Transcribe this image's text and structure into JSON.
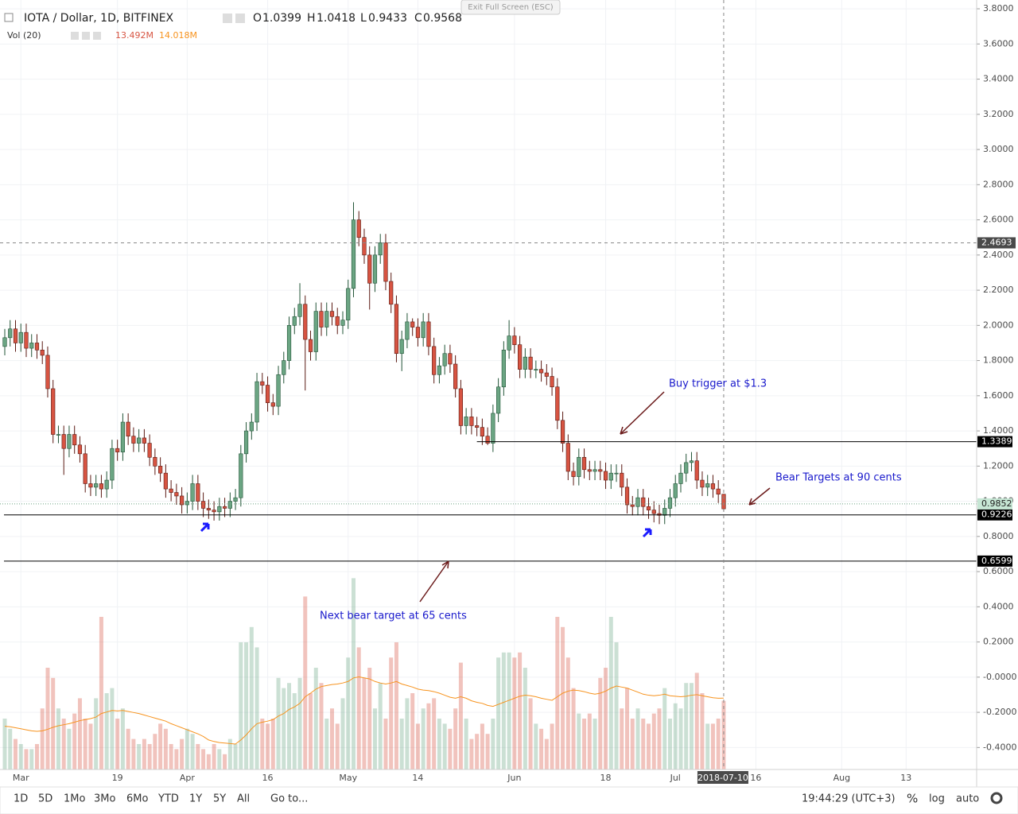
{
  "header": {
    "symbol": "IOTA / Dollar, 1D, BITFINEX",
    "o": "O",
    "h": "H",
    "l": "L",
    "c": "C",
    "vol_title": "Vol (20)",
    "volume": "13.492M",
    "volume_ma": "14.018M",
    "exit": "Exit Full Screen (ESC)"
  },
  "toolbar": {
    "ranges": [
      "1D",
      "5D",
      "1Mo",
      "3Mo",
      "6Mo",
      "YTD",
      "1Y",
      "5Y",
      "All"
    ],
    "goto": "Go to...",
    "clock": "19:44:29 (UTC+3)",
    "percent": "%",
    "log": "log",
    "auto": "auto"
  },
  "annotations": [
    "Buy trigger at $1.3",
    "Bear Targets at 90 cents",
    "Next bear target at 65 cents"
  ],
  "chart_data": {
    "type": "candlestick",
    "log_scale": false,
    "grid": true,
    "up_color": "#6ba583",
    "down_color": "#d75442",
    "ma_color": "#f7931e",
    "xlim": [
      "2018-02-26",
      "2018-08-26"
    ],
    "ylim": [
      -0.525,
      3.85
    ],
    "volume_ylim": [
      0,
      40
    ],
    "yticks": [
      {
        "value": 3.8,
        "label": "3.8000"
      },
      {
        "value": 3.6,
        "label": "3.6000"
      },
      {
        "value": 3.4,
        "label": "3.4000"
      },
      {
        "value": 3.2,
        "label": "3.2000"
      },
      {
        "value": 3.0,
        "label": "3.0000"
      },
      {
        "value": 2.8,
        "label": "2.8000"
      },
      {
        "value": 2.6,
        "label": "2.6000"
      },
      {
        "value": 2.4,
        "label": "2.4000"
      },
      {
        "value": 2.2,
        "label": "2.2000"
      },
      {
        "value": 2.0,
        "label": "2.0000"
      },
      {
        "value": 1.8,
        "label": "1.8000"
      },
      {
        "value": 1.6,
        "label": "1.6000"
      },
      {
        "value": 1.4,
        "label": "1.4000"
      },
      {
        "value": 1.2,
        "label": "1.2000"
      },
      {
        "value": 1.0,
        "label": "1.0000"
      },
      {
        "value": 0.8,
        "label": "0.8000"
      },
      {
        "value": 0.6,
        "label": "0.6000"
      },
      {
        "value": 0.4,
        "label": "0.4000"
      },
      {
        "value": 0.2,
        "label": "0.2000"
      },
      {
        "value": 0,
        "label": "-0.0000"
      },
      {
        "value": -0.2,
        "label": "-0.2000"
      },
      {
        "value": -0.4,
        "label": "-0.4000"
      }
    ],
    "xticks": [
      {
        "value": "2018-03-01",
        "label": "Mar"
      },
      {
        "value": "2018-03-19",
        "label": "19"
      },
      {
        "value": "2018-04-01",
        "label": "Apr"
      },
      {
        "value": "2018-04-16",
        "label": "16"
      },
      {
        "value": "2018-05-01",
        "label": "May"
      },
      {
        "value": "2018-05-14",
        "label": "14"
      },
      {
        "value": "2018-06-01",
        "label": "Jun"
      },
      {
        "value": "2018-06-18",
        "label": "18"
      },
      {
        "value": "2018-07-01",
        "label": "Jul"
      },
      {
        "value": "2018-07-16",
        "label": "16"
      },
      {
        "value": "2018-08-01",
        "label": "Aug"
      },
      {
        "value": "2018-08-13",
        "label": "13"
      }
    ],
    "price_lines": [
      {
        "value": 1.3389,
        "from": "2018-05-25"
      },
      {
        "value": 0.9226
      },
      {
        "value": 0.6599
      }
    ],
    "last_price": 0.9852,
    "crosshair": {
      "price": 2.4693,
      "date": "2018-07-10"
    },
    "x": [
      "2018-02-26",
      "2018-02-27",
      "2018-02-28",
      "2018-03-01",
      "2018-03-02",
      "2018-03-03",
      "2018-03-04",
      "2018-03-05",
      "2018-03-06",
      "2018-03-07",
      "2018-03-08",
      "2018-03-09",
      "2018-03-10",
      "2018-03-11",
      "2018-03-12",
      "2018-03-13",
      "2018-03-14",
      "2018-03-15",
      "2018-03-16",
      "2018-03-17",
      "2018-03-18",
      "2018-03-19",
      "2018-03-20",
      "2018-03-21",
      "2018-03-22",
      "2018-03-23",
      "2018-03-24",
      "2018-03-25",
      "2018-03-26",
      "2018-03-27",
      "2018-03-28",
      "2018-03-29",
      "2018-03-30",
      "2018-03-31",
      "2018-04-01",
      "2018-04-02",
      "2018-04-03",
      "2018-04-04",
      "2018-04-05",
      "2018-04-06",
      "2018-04-07",
      "2018-04-08",
      "2018-04-09",
      "2018-04-10",
      "2018-04-11",
      "2018-04-12",
      "2018-04-13",
      "2018-04-14",
      "2018-04-15",
      "2018-04-16",
      "2018-04-17",
      "2018-04-18",
      "2018-04-19",
      "2018-04-20",
      "2018-04-21",
      "2018-04-22",
      "2018-04-23",
      "2018-04-24",
      "2018-04-25",
      "2018-04-26",
      "2018-04-27",
      "2018-04-28",
      "2018-04-29",
      "2018-04-30",
      "2018-05-01",
      "2018-05-02",
      "2018-05-03",
      "2018-05-04",
      "2018-05-05",
      "2018-05-06",
      "2018-05-07",
      "2018-05-08",
      "2018-05-09",
      "2018-05-10",
      "2018-05-11",
      "2018-05-12",
      "2018-05-13",
      "2018-05-14",
      "2018-05-15",
      "2018-05-16",
      "2018-05-17",
      "2018-05-18",
      "2018-05-19",
      "2018-05-20",
      "2018-05-21",
      "2018-05-22",
      "2018-05-23",
      "2018-05-24",
      "2018-05-25",
      "2018-05-26",
      "2018-05-27",
      "2018-05-28",
      "2018-05-29",
      "2018-05-30",
      "2018-05-31",
      "2018-06-01",
      "2018-06-02",
      "2018-06-03",
      "2018-06-04",
      "2018-06-05",
      "2018-06-06",
      "2018-06-07",
      "2018-06-08",
      "2018-06-09",
      "2018-06-10",
      "2018-06-11",
      "2018-06-12",
      "2018-06-13",
      "2018-06-14",
      "2018-06-15",
      "2018-06-16",
      "2018-06-17",
      "2018-06-18",
      "2018-06-19",
      "2018-06-20",
      "2018-06-21",
      "2018-06-22",
      "2018-06-23",
      "2018-06-24",
      "2018-06-25",
      "2018-06-26",
      "2018-06-27",
      "2018-06-28",
      "2018-06-29",
      "2018-06-30",
      "2018-07-01",
      "2018-07-02",
      "2018-07-03",
      "2018-07-04",
      "2018-07-05",
      "2018-07-06",
      "2018-07-07",
      "2018-07-08",
      "2018-07-09",
      "2018-07-10"
    ],
    "open": [
      1.88,
      1.93,
      1.98,
      1.9,
      1.96,
      1.87,
      1.9,
      1.86,
      1.83,
      1.64,
      1.38,
      1.38,
      1.3,
      1.38,
      1.32,
      1.27,
      1.1,
      1.08,
      1.1,
      1.07,
      1.12,
      1.3,
      1.28,
      1.45,
      1.37,
      1.33,
      1.36,
      1.33,
      1.25,
      1.2,
      1.16,
      1.07,
      1.05,
      1.03,
      0.98,
      1.0,
      1.1,
      1.0,
      0.96,
      0.95,
      0.94,
      0.97,
      0.96,
      1.0,
      1.02,
      1.27,
      1.4,
      1.45,
      1.68,
      1.66,
      1.56,
      1.54,
      1.72,
      1.8,
      2.0,
      2.05,
      2.12,
      1.92,
      1.85,
      2.08,
      1.99,
      2.08,
      2.05,
      2.0,
      2.03,
      2.21,
      2.6,
      2.5,
      2.4,
      2.24,
      2.4,
      2.47,
      2.25,
      2.12,
      1.84,
      1.92,
      2.02,
      1.99,
      1.93,
      2.02,
      1.88,
      1.72,
      1.77,
      1.84,
      1.78,
      1.64,
      1.43,
      1.48,
      1.43,
      1.42,
      1.37,
      1.33,
      1.5,
      1.65,
      1.86,
      1.94,
      1.89,
      1.75,
      1.82,
      1.75,
      1.75,
      1.73,
      1.71,
      1.65,
      1.46,
      1.33,
      1.17,
      1.14,
      1.25,
      1.18,
      1.17,
      1.18,
      1.17,
      1.12,
      1.16,
      1.16,
      1.08,
      0.98,
      0.97,
      1.02,
      0.97,
      0.95,
      0.93,
      0.92,
      0.96,
      1.02,
      1.1,
      1.16,
      1.22,
      1.23,
      1.12,
      1.08,
      1.1,
      1.07,
      1.0399
    ],
    "high": [
      1.98,
      2.03,
      2.03,
      2.01,
      2.01,
      1.95,
      1.95,
      1.91,
      1.88,
      1.69,
      1.43,
      1.43,
      1.43,
      1.43,
      1.37,
      1.32,
      1.15,
      1.15,
      1.15,
      1.17,
      1.35,
      1.35,
      1.5,
      1.5,
      1.42,
      1.41,
      1.41,
      1.38,
      1.3,
      1.25,
      1.21,
      1.12,
      1.1,
      1.08,
      1.05,
      1.15,
      1.15,
      1.05,
      1.01,
      1.0,
      1.02,
      1.02,
      1.05,
      1.07,
      1.32,
      1.45,
      1.5,
      1.73,
      1.73,
      1.71,
      1.61,
      1.77,
      1.85,
      2.05,
      2.1,
      2.24,
      2.17,
      1.97,
      2.13,
      2.13,
      2.13,
      2.13,
      2.1,
      2.08,
      2.26,
      2.7,
      2.65,
      2.55,
      2.45,
      2.45,
      2.52,
      2.52,
      2.3,
      2.17,
      1.97,
      2.07,
      2.04,
      2.04,
      2.07,
      2.07,
      1.93,
      1.82,
      1.89,
      1.89,
      1.83,
      1.69,
      1.53,
      1.53,
      1.48,
      1.47,
      1.42,
      1.55,
      1.7,
      1.91,
      2.03,
      1.99,
      1.94,
      1.87,
      1.87,
      1.8,
      1.8,
      1.78,
      1.76,
      1.7,
      1.51,
      1.38,
      1.22,
      1.3,
      1.3,
      1.23,
      1.23,
      1.23,
      1.22,
      1.21,
      1.21,
      1.21,
      1.13,
      1.03,
      1.07,
      1.07,
      1.02,
      1.0,
      0.98,
      1.01,
      1.07,
      1.15,
      1.21,
      1.27,
      1.28,
      1.28,
      1.17,
      1.15,
      1.15,
      1.12,
      1.0418
    ],
    "low": [
      1.83,
      1.88,
      1.85,
      1.85,
      1.82,
      1.82,
      1.81,
      1.78,
      1.59,
      1.33,
      1.33,
      1.15,
      1.25,
      1.27,
      1.22,
      1.05,
      1.03,
      1.03,
      1.02,
      1.02,
      1.07,
      1.23,
      1.23,
      1.32,
      1.28,
      1.28,
      1.28,
      1.2,
      1.15,
      1.11,
      1.02,
      1.0,
      0.98,
      0.93,
      0.93,
      0.95,
      0.95,
      0.91,
      0.9,
      0.89,
      0.89,
      0.91,
      0.91,
      0.95,
      0.97,
      1.22,
      1.35,
      1.4,
      1.61,
      1.51,
      1.49,
      1.49,
      1.67,
      1.75,
      1.95,
      2.0,
      1.63,
      1.8,
      1.8,
      1.94,
      1.94,
      2.0,
      1.95,
      1.95,
      1.98,
      2.16,
      2.45,
      2.35,
      2.09,
      2.19,
      2.35,
      2.2,
      2.07,
      1.79,
      1.74,
      1.87,
      1.94,
      1.88,
      1.88,
      1.83,
      1.67,
      1.67,
      1.72,
      1.73,
      1.59,
      1.38,
      1.38,
      1.38,
      1.37,
      1.32,
      1.32,
      1.28,
      1.45,
      1.6,
      1.81,
      1.84,
      1.7,
      1.7,
      1.7,
      1.7,
      1.68,
      1.66,
      1.6,
      1.41,
      1.28,
      1.12,
      1.09,
      1.09,
      1.13,
      1.12,
      1.12,
      1.12,
      1.07,
      1.07,
      1.11,
      1.03,
      0.93,
      0.92,
      0.92,
      0.92,
      0.9,
      0.88,
      0.87,
      0.87,
      0.91,
      0.97,
      1.05,
      1.11,
      1.17,
      1.07,
      1.03,
      1.03,
      1.02,
      0.99,
      0.9433
    ],
    "close": [
      1.93,
      1.98,
      1.9,
      1.96,
      1.87,
      1.9,
      1.86,
      1.83,
      1.64,
      1.38,
      1.38,
      1.3,
      1.38,
      1.32,
      1.27,
      1.1,
      1.08,
      1.1,
      1.07,
      1.12,
      1.3,
      1.28,
      1.45,
      1.37,
      1.33,
      1.36,
      1.33,
      1.25,
      1.2,
      1.16,
      1.07,
      1.05,
      1.03,
      0.98,
      1.0,
      1.1,
      1.0,
      0.96,
      0.95,
      0.94,
      0.97,
      0.96,
      1.0,
      1.02,
      1.27,
      1.4,
      1.45,
      1.68,
      1.66,
      1.56,
      1.54,
      1.72,
      1.8,
      2.0,
      2.05,
      2.12,
      1.92,
      1.85,
      2.08,
      1.99,
      2.08,
      2.05,
      2.0,
      2.03,
      2.21,
      2.6,
      2.5,
      2.4,
      2.24,
      2.4,
      2.47,
      2.25,
      2.12,
      1.84,
      1.92,
      2.02,
      1.99,
      1.93,
      2.02,
      1.88,
      1.72,
      1.77,
      1.84,
      1.78,
      1.64,
      1.43,
      1.48,
      1.43,
      1.42,
      1.37,
      1.33,
      1.5,
      1.65,
      1.86,
      1.94,
      1.89,
      1.75,
      1.82,
      1.75,
      1.75,
      1.73,
      1.71,
      1.65,
      1.46,
      1.33,
      1.17,
      1.14,
      1.25,
      1.18,
      1.17,
      1.18,
      1.17,
      1.12,
      1.16,
      1.16,
      1.08,
      0.98,
      0.97,
      1.02,
      0.97,
      0.95,
      0.93,
      0.92,
      0.96,
      1.02,
      1.1,
      1.16,
      1.22,
      1.23,
      1.12,
      1.08,
      1.1,
      1.07,
      1.04,
      0.9568
    ],
    "volume": [
      10,
      8,
      6,
      5,
      4,
      4,
      5,
      12,
      20,
      18,
      12,
      10,
      8,
      11,
      14,
      10,
      9,
      14,
      30,
      15,
      16,
      10,
      12,
      8,
      6,
      5,
      6,
      5,
      7,
      9,
      8,
      5,
      4,
      6,
      8,
      7,
      5,
      4,
      3,
      5,
      4,
      3,
      6,
      5,
      25,
      25,
      28,
      24,
      10,
      9,
      10,
      18,
      16,
      17,
      15,
      18,
      34,
      15,
      20,
      17,
      10,
      12,
      9,
      14,
      22,
      37.6,
      24,
      18,
      20,
      12,
      17,
      10,
      22,
      25,
      10,
      14,
      15,
      9,
      12,
      13,
      14,
      10,
      9,
      8,
      12,
      21,
      10,
      6,
      7,
      9,
      7,
      10,
      22,
      23,
      23,
      22,
      23,
      20,
      14,
      9,
      8,
      6,
      9,
      30,
      28,
      22,
      16,
      11,
      10,
      11,
      10,
      18,
      20,
      30,
      25,
      12,
      16,
      10,
      12,
      10,
      9,
      11,
      12,
      16,
      10,
      13,
      12,
      17,
      17,
      19,
      15,
      9,
      9,
      10,
      13.492
    ],
    "volume_ma": [
      8.5,
      8.4,
      8.2,
      8.0,
      7.8,
      7.6,
      7.5,
      7.6,
      7.9,
      8.3,
      8.6,
      8.8,
      9.0,
      9.3,
      9.6,
      9.8,
      10.0,
      10.3,
      11.0,
      11.3,
      11.6,
      11.5,
      11.6,
      11.4,
      11.2,
      11.0,
      10.7,
      10.4,
      10.1,
      9.8,
      9.5,
      9.0,
      8.6,
      8.2,
      7.8,
      7.4,
      7.0,
      6.5,
      5.8,
      5.5,
      5.3,
      5.2,
      5.1,
      5.0,
      5.8,
      6.8,
      8.0,
      9.0,
      9.3,
      9.5,
      9.8,
      10.5,
      11.0,
      11.8,
      12.3,
      13.0,
      14.3,
      15.0,
      15.8,
      16.3,
      16.5,
      16.7,
      16.8,
      17.0,
      17.3,
      18.0,
      18.2,
      18.0,
      17.8,
      17.3,
      17.0,
      16.8,
      17.0,
      17.3,
      16.8,
      16.5,
      16.2,
      15.8,
      15.6,
      15.5,
      15.3,
      15.0,
      14.6,
      14.2,
      14.0,
      14.3,
      14.0,
      13.5,
      13.2,
      13.0,
      12.6,
      12.4,
      12.8,
      13.2,
      13.6,
      14.0,
      14.4,
      14.6,
      14.5,
      14.3,
      14.0,
      13.8,
      13.6,
      14.3,
      15.0,
      15.4,
      15.6,
      15.5,
      15.3,
      15.0,
      14.8,
      15.0,
      15.4,
      16.0,
      16.4,
      16.2,
      16.0,
      15.6,
      15.2,
      14.8,
      14.6,
      14.5,
      14.6,
      14.8,
      14.5,
      14.4,
      14.3,
      14.4,
      14.6,
      14.7,
      14.5,
      14.3,
      14.1,
      14.0,
      14.018
    ]
  }
}
